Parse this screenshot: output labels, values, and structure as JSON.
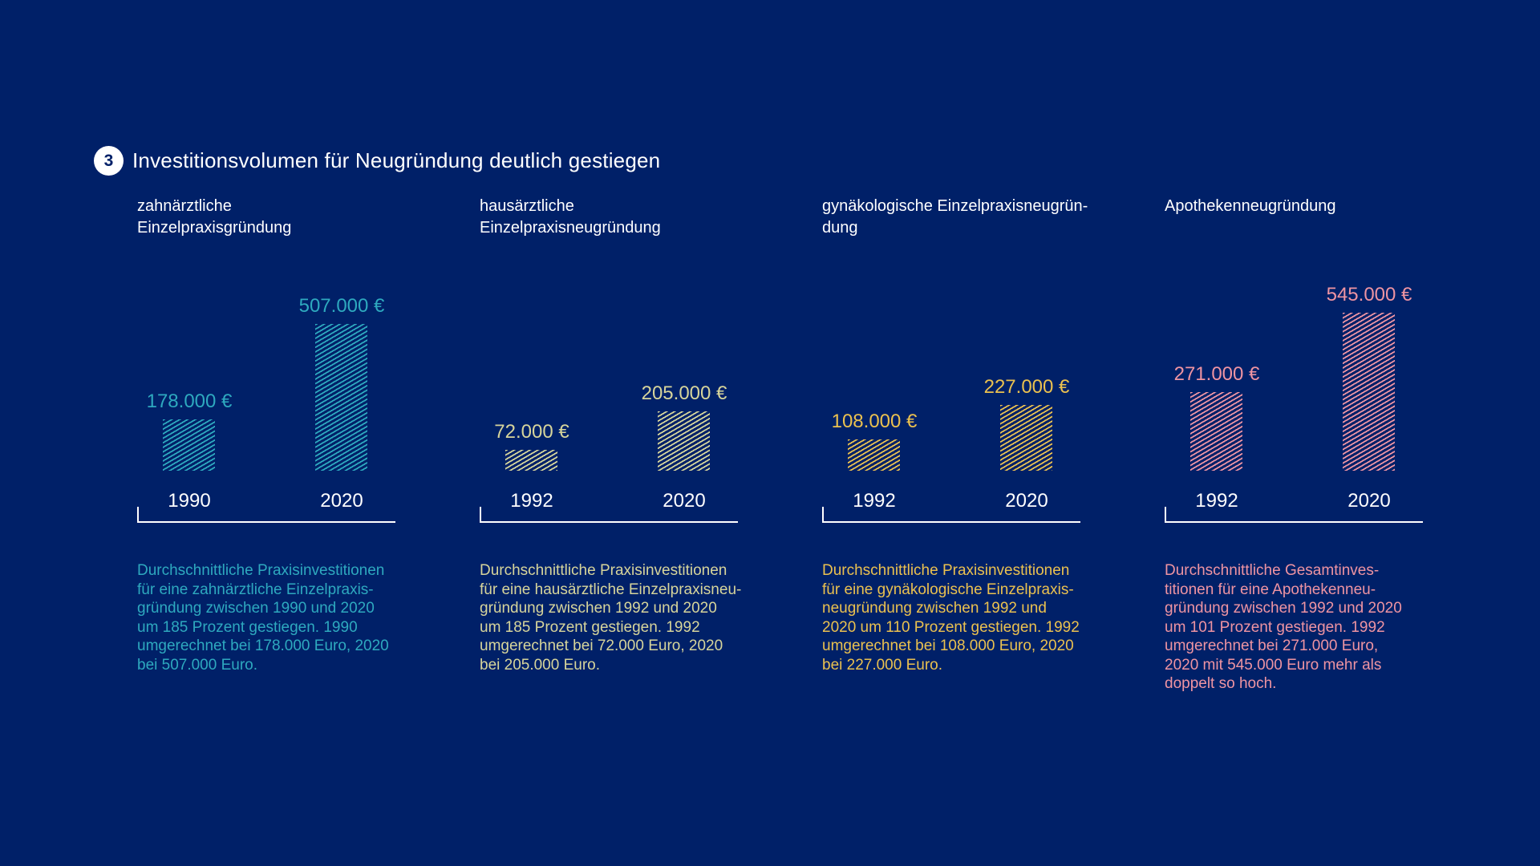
{
  "page": {
    "background": "#002068",
    "badge": "3",
    "title": "Investitionsvolumen für Neugründung deutlich gestiegen",
    "text_color": "#ffffff"
  },
  "chart_data": [
    {
      "type": "bar",
      "title": "zahnärztliche\nEinzelpraxisgründung",
      "categories": [
        "1990",
        "2020"
      ],
      "values": [
        178000,
        507000
      ],
      "value_labels": [
        "178.000 €",
        "507.000 €"
      ],
      "unit": "€",
      "ylim": [
        0,
        550000
      ],
      "color": "#2ea9bf",
      "description": "Durchschnittliche Praxisinvestitionen\nfür eine zahnärztliche Einzelpraxis-\ngründung zwischen 1990 und 2020\num 185 Prozent gestiegen. 1990\numgerechnet bei 178.000 Euro, 2020\nbei 507.000 Euro."
    },
    {
      "type": "bar",
      "title": "hausärztliche\nEinzelpraxisneugründung",
      "categories": [
        "1992",
        "2020"
      ],
      "values": [
        72000,
        205000
      ],
      "value_labels": [
        "72.000 €",
        "205.000 €"
      ],
      "unit": "€",
      "ylim": [
        0,
        550000
      ],
      "color": "#d7d59b",
      "description": "Durchschnittliche Praxisinvestitionen\nfür eine hausärztliche Einzelpraxisneu-\ngründung zwischen 1992 und 2020\num 185 Prozent gestiegen. 1992\numgerechnet bei 72.000 Euro, 2020\nbei 205.000 Euro."
    },
    {
      "type": "bar",
      "title": "gynäkologische Einzelpraxisneugrün-\ndung",
      "categories": [
        "1992",
        "2020"
      ],
      "values": [
        108000,
        227000
      ],
      "value_labels": [
        "108.000 €",
        "227.000 €"
      ],
      "unit": "€",
      "ylim": [
        0,
        550000
      ],
      "color": "#ebc14f",
      "description": "Durchschnittliche Praxisinvestitionen\nfür eine gynäkologische Einzelpraxis-\nneugründung zwischen 1992 und\n2020 um 110 Prozent gestiegen. 1992\numgerechnet bei 108.000 Euro, 2020\nbei 227.000 Euro."
    },
    {
      "type": "bar",
      "title": "Apothekenneugründung",
      "categories": [
        "1992",
        "2020"
      ],
      "values": [
        271000,
        545000
      ],
      "value_labels": [
        "271.000 €",
        "545.000 €"
      ],
      "unit": "€",
      "ylim": [
        0,
        550000
      ],
      "color": "#ef94a2",
      "description": "Durchschnittliche Gesamtinves-\ntitionen für eine Apothekenneu-\ngründung zwischen 1992 und 2020\num 101 Prozent gestiegen. 1992\numgerechnet bei 271.000 Euro,\n2020 mit 545.000 Euro mehr als\ndoppelt so hoch."
    }
  ]
}
